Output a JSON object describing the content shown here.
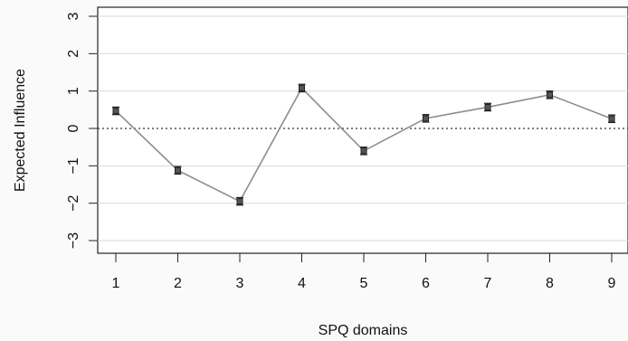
{
  "chart_data": {
    "type": "line",
    "xlabel": "SPQ domains",
    "ylabel": "Expected Influence",
    "categories": [
      "1",
      "2",
      "3",
      "4",
      "5",
      "6",
      "7",
      "8",
      "9"
    ],
    "x_ticks": [
      "1",
      "2",
      "3",
      "4",
      "5",
      "6",
      "7",
      "8",
      "9"
    ],
    "y_ticks": [
      "-3",
      "-2",
      "-1",
      "0",
      "1",
      "2",
      "3"
    ],
    "ylim": [
      -3,
      3
    ],
    "grid": "horizontal",
    "reference_line": 0,
    "series": [
      {
        "values": [
          0.47,
          -1.12,
          -1.95,
          1.08,
          -0.6,
          0.27,
          0.57,
          0.9,
          0.26
        ],
        "error_lower": [
          0.37,
          -1.22,
          -2.05,
          0.98,
          -0.7,
          0.17,
          0.47,
          0.8,
          0.16
        ],
        "error_upper": [
          0.57,
          -1.02,
          -1.85,
          1.18,
          -0.5,
          0.37,
          0.67,
          1.0,
          0.36
        ]
      }
    ],
    "colors": {
      "line": "#8c8c8c",
      "marker": "#222222",
      "grid": "#d9d9d9",
      "axis": "#222222",
      "panel": "#ffffff"
    }
  }
}
